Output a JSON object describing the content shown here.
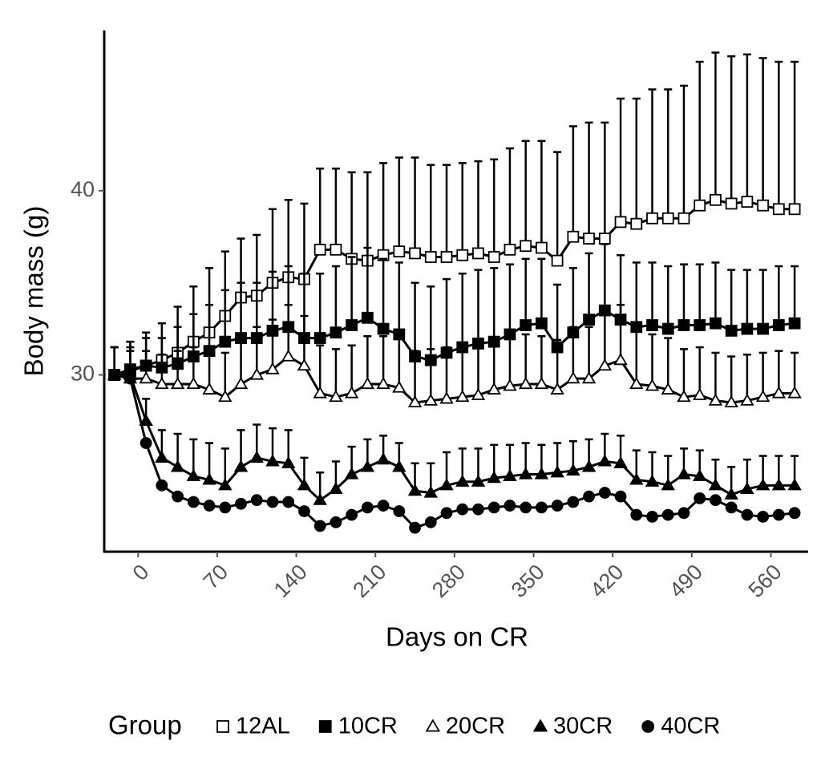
{
  "chart_data": {
    "type": "line",
    "x_label": "Days on CR",
    "y_label": "Body mass (g)",
    "legend_title": "Group",
    "legend_position": "bottom",
    "xlim": [
      -30,
      593
    ],
    "ylim": [
      20.4,
      48.7
    ],
    "xticks": [
      0,
      70,
      140,
      210,
      280,
      350,
      420,
      490,
      560
    ],
    "yticks": [
      30,
      40
    ],
    "grid": false,
    "x": [
      -21,
      -7,
      7,
      21,
      35,
      49,
      63,
      77,
      91,
      105,
      119,
      133,
      147,
      161,
      175,
      189,
      203,
      217,
      231,
      245,
      259,
      273,
      287,
      301,
      315,
      329,
      343,
      357,
      371,
      385,
      399,
      413,
      427,
      441,
      455,
      469,
      483,
      497,
      511,
      525,
      539,
      553,
      567,
      581
    ],
    "series": [
      {
        "name": "12AL",
        "color": "#000000",
        "marker": "square",
        "filled": false,
        "values": [
          30,
          30.2,
          30.5,
          30.8,
          31.2,
          31.8,
          32.3,
          33.2,
          34.2,
          34.3,
          35,
          35.3,
          35.2,
          36.8,
          36.8,
          36.3,
          36.2,
          36.5,
          36.7,
          36.6,
          36.4,
          36.4,
          36.5,
          36.6,
          36.4,
          36.8,
          37,
          36.9,
          36.2,
          37.5,
          37.4,
          37.4,
          38.3,
          38.2,
          38.5,
          38.5,
          38.5,
          39.2,
          39.5,
          39.3,
          39.4,
          39.2,
          39,
          39
        ],
        "errors": [
          1.5,
          1.6,
          1.8,
          2,
          2.5,
          3,
          3.5,
          3.5,
          3.2,
          3.3,
          4,
          4.2,
          4.1,
          4.4,
          4.4,
          4.7,
          4.8,
          5,
          5.1,
          5.2,
          5,
          5,
          5,
          5,
          5.3,
          5.5,
          5.7,
          5.8,
          5.9,
          6,
          6.3,
          6.3,
          6.7,
          6.8,
          7,
          7,
          7.2,
          7.8,
          8,
          8,
          8,
          8,
          8,
          8
        ]
      },
      {
        "name": "10CR",
        "color": "#000000",
        "marker": "square",
        "filled": true,
        "values": [
          30,
          30.3,
          30.5,
          30.4,
          30.6,
          31,
          31.3,
          31.8,
          32,
          32,
          32.4,
          32.6,
          32,
          32,
          32.3,
          32.7,
          33.1,
          32.5,
          32.2,
          31,
          30.8,
          31.2,
          31.5,
          31.7,
          31.8,
          32.2,
          32.7,
          32.8,
          31.5,
          32.3,
          33,
          33.5,
          33,
          32.6,
          32.7,
          32.5,
          32.7,
          32.7,
          32.8,
          32.4,
          32.5,
          32.5,
          32.7,
          32.8
        ],
        "errors": [
          1.5,
          1.5,
          1.5,
          1.6,
          2,
          2.3,
          2.5,
          2.8,
          3,
          3,
          3.2,
          3.3,
          3.5,
          3.5,
          3.6,
          3.7,
          3.8,
          3.8,
          3.9,
          4,
          4,
          4,
          4,
          4,
          4,
          3.8,
          3.6,
          3.5,
          3.4,
          3.5,
          3.6,
          3.6,
          3.5,
          3.5,
          3.4,
          3.4,
          3.3,
          3.3,
          3.3,
          3.3,
          3.2,
          3.2,
          3.2,
          3.1
        ]
      },
      {
        "name": "20CR",
        "color": "#000000",
        "marker": "triangle",
        "filled": false,
        "values": [
          30,
          29.8,
          29.8,
          29.5,
          29.5,
          29.5,
          29.2,
          28.8,
          29.5,
          30,
          30.3,
          31,
          30.5,
          29,
          28.8,
          29,
          29.5,
          29.5,
          29.3,
          28.5,
          28.6,
          28.7,
          28.8,
          28.9,
          29.2,
          29.4,
          29.5,
          29.5,
          29.2,
          29.8,
          29.8,
          30.5,
          30.8,
          29.5,
          29.4,
          29.2,
          28.8,
          28.9,
          28.6,
          28.5,
          28.6,
          28.8,
          29,
          29
        ],
        "errors": [
          1.5,
          1.5,
          1.5,
          1.6,
          1.8,
          2,
          2.2,
          2.4,
          2.5,
          2.6,
          2.7,
          2.8,
          2.7,
          2.6,
          2.6,
          2.6,
          2.6,
          2.6,
          2.7,
          2.8,
          2.8,
          2.8,
          2.8,
          2.8,
          2.8,
          2.7,
          2.7,
          2.6,
          2.7,
          2.8,
          2.8,
          2.9,
          3,
          2.9,
          2.8,
          2.8,
          2.6,
          2.6,
          2.6,
          2.5,
          2.5,
          2.4,
          2.3,
          2.2
        ]
      },
      {
        "name": "30CR",
        "color": "#000000",
        "marker": "triangle",
        "filled": true,
        "values": [
          30,
          30,
          27.5,
          25.5,
          25,
          24.5,
          24.3,
          24,
          25,
          25.5,
          25.3,
          25.2,
          24,
          23.2,
          23.8,
          24.6,
          25,
          25.4,
          25,
          23.7,
          23.6,
          24,
          24.2,
          24.2,
          24.4,
          24.5,
          24.6,
          24.6,
          24.7,
          24.8,
          25,
          25.3,
          25.2,
          24.3,
          24.2,
          24,
          24.6,
          24.5,
          24,
          23.5,
          23.8,
          24,
          24,
          24
        ],
        "errors": [
          1.5,
          1.5,
          1.2,
          1.5,
          1.8,
          2,
          2,
          2,
          2,
          1.8,
          1.8,
          1.8,
          1.5,
          1.5,
          1.5,
          1.5,
          1.5,
          1.3,
          1.3,
          1.5,
          1.6,
          1.8,
          1.8,
          1.8,
          1.8,
          1.7,
          1.7,
          1.6,
          1.6,
          1.6,
          1.5,
          1.5,
          1.5,
          1.6,
          1.6,
          1.6,
          1.4,
          1.4,
          1.4,
          1.5,
          1.6,
          1.6,
          1.6,
          1.6
        ]
      },
      {
        "name": "40CR",
        "color": "#000000",
        "marker": "circle",
        "filled": true,
        "values": [
          30,
          29.8,
          26.3,
          24,
          23.4,
          23.1,
          22.9,
          22.8,
          23,
          23.2,
          23.1,
          23.1,
          22.6,
          21.8,
          22,
          22.4,
          22.8,
          22.9,
          22.6,
          21.7,
          22,
          22.5,
          22.7,
          22.7,
          22.8,
          22.9,
          22.8,
          22.8,
          22.9,
          23.1,
          23.4,
          23.6,
          23.4,
          22.4,
          22.3,
          22.4,
          22.5,
          23.3,
          23.2,
          22.8,
          22.4,
          22.3,
          22.4,
          22.5
        ]
      }
    ]
  }
}
